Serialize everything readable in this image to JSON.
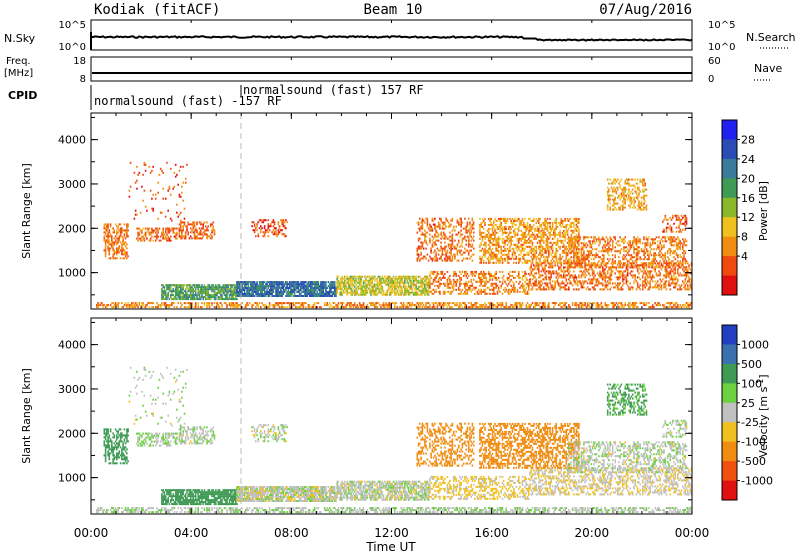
{
  "header": {
    "title_left": "Kodiak (fitACF)",
    "title_center": "Beam 10",
    "title_right": "07/Aug/2016"
  },
  "noise_panel": {
    "label_left": "N.Sky",
    "label_right": "N.Search",
    "left_ticks": [
      "10^5",
      "10^0"
    ],
    "right_ticks": [
      "10^5",
      "10^0"
    ]
  },
  "freq_panel": {
    "label_left_1": "Freq.",
    "label_left_2": "[MHz]",
    "left_ticks": [
      "18",
      "8"
    ],
    "right_ticks": [
      "60",
      "0"
    ],
    "label_right": "Nave"
  },
  "cpid": {
    "label": "CPID",
    "programs": [
      {
        "label": "normalsound (fast) -157 RF",
        "start_hour": 0.0
      },
      {
        "label": "normalsound (fast) 157 RF",
        "start_hour": 6.05
      }
    ]
  },
  "x_axis": {
    "label": "Time UT",
    "ticks": [
      "00:00",
      "04:00",
      "08:00",
      "12:00",
      "16:00",
      "20:00",
      "00:00"
    ],
    "range_hours": [
      0,
      24
    ]
  },
  "power_panel": {
    "ylabel": "Slant Range [km]",
    "yticks": [
      "1000",
      "2000",
      "3000",
      "4000"
    ],
    "ylim": [
      180,
      4600
    ],
    "colorbar": {
      "label": "Power [dB]",
      "ticks": [
        "4",
        "8",
        "12",
        "16",
        "20",
        "24",
        "28"
      ],
      "colors": [
        "#2020f0",
        "#2a4db5",
        "#3a7a9a",
        "#3f9a55",
        "#8ab82a",
        "#f0c020",
        "#f08c10",
        "#f04a10",
        "#e01010"
      ]
    }
  },
  "velocity_panel": {
    "ylabel": "Slant Range [km]",
    "yticks": [
      "1000",
      "2000",
      "3000",
      "4000"
    ],
    "ylim": [
      180,
      4600
    ],
    "colorbar": {
      "label": "Velocity [m s^-1]",
      "ticks": [
        "1000",
        "500",
        "100",
        "25",
        "-25",
        "-100",
        "-500",
        "-1000"
      ],
      "colors": [
        "#2040c0",
        "#3a6fb0",
        "#3f9a55",
        "#6cd040",
        "#c0c0c0",
        "#f0c020",
        "#f08c10",
        "#f05010",
        "#e01010"
      ]
    }
  },
  "chart_data": {
    "type": "heatmap",
    "title": "Kodiak (fitACF)",
    "xlabel": "Time UT",
    "ylabel": "Slant Range [km]",
    "xlim_hours": [
      0,
      24
    ],
    "ylim_km": [
      180,
      4600
    ],
    "echo_regions": [
      {
        "t0": 0.2,
        "t1": 24.0,
        "r0": 200,
        "r1": 330,
        "power": 10,
        "velocity": 15,
        "density": 0.55
      },
      {
        "t0": 2.8,
        "t1": 5.8,
        "r0": 380,
        "r1": 720,
        "power": 22,
        "velocity": 150,
        "density": 0.8
      },
      {
        "t0": 5.8,
        "t1": 9.8,
        "r0": 450,
        "r1": 800,
        "power": 27,
        "velocity": 0,
        "density": 0.9
      },
      {
        "t0": 9.8,
        "t1": 13.5,
        "r0": 480,
        "r1": 900,
        "power": 16,
        "velocity": 5,
        "density": 0.7
      },
      {
        "t0": 13.5,
        "t1": 17.5,
        "r0": 500,
        "r1": 1000,
        "power": 9,
        "velocity": -40,
        "density": 0.45
      },
      {
        "t0": 17.5,
        "t1": 24.0,
        "r0": 600,
        "r1": 1200,
        "power": 8,
        "velocity": -20,
        "density": 0.45
      },
      {
        "t0": 0.5,
        "t1": 1.5,
        "r0": 1300,
        "r1": 2100,
        "power": 9,
        "velocity": 200,
        "density": 0.5
      },
      {
        "t0": 1.8,
        "t1": 3.4,
        "r0": 1700,
        "r1": 2000,
        "power": 8,
        "velocity": 30,
        "density": 0.5
      },
      {
        "t0": 3.5,
        "t1": 4.9,
        "r0": 1750,
        "r1": 2150,
        "power": 7,
        "velocity": 10,
        "density": 0.5
      },
      {
        "t0": 6.4,
        "t1": 7.8,
        "r0": 1800,
        "r1": 2200,
        "power": 6,
        "velocity": 5,
        "density": 0.35
      },
      {
        "t0": 13.0,
        "t1": 15.3,
        "r0": 1250,
        "r1": 2200,
        "power": 8,
        "velocity": -150,
        "density": 0.35
      },
      {
        "t0": 15.5,
        "t1": 19.5,
        "r0": 1200,
        "r1": 2200,
        "power": 11,
        "velocity": -300,
        "density": 0.5
      },
      {
        "t0": 19.0,
        "t1": 23.8,
        "r0": 1100,
        "r1": 1800,
        "power": 9,
        "velocity": 8,
        "density": 0.45
      },
      {
        "t0": 20.6,
        "t1": 22.2,
        "r0": 2400,
        "r1": 3100,
        "power": 12,
        "velocity": 120,
        "density": 0.45
      },
      {
        "t0": 1.5,
        "t1": 3.8,
        "r0": 2150,
        "r1": 3500,
        "power": 6,
        "velocity": 10,
        "density": 0.06
      },
      {
        "t0": 22.8,
        "t1": 23.8,
        "r0": 1900,
        "r1": 2300,
        "power": 7,
        "velocity": 10,
        "density": 0.35
      }
    ]
  }
}
